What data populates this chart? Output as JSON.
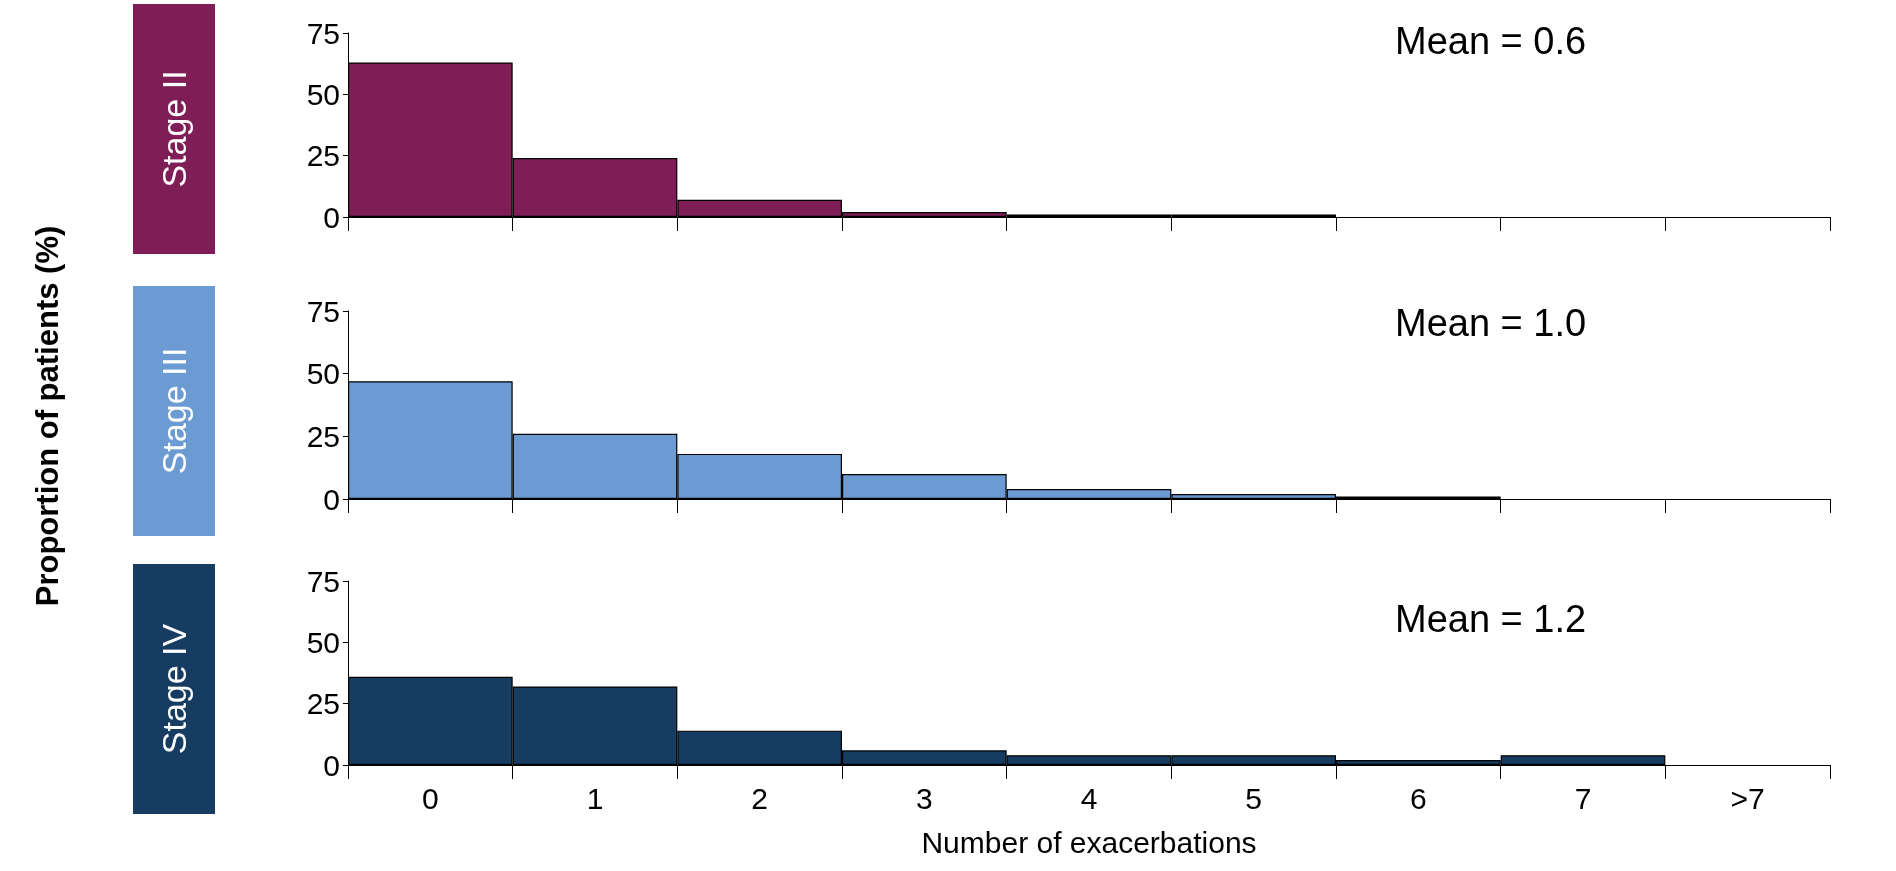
{
  "chart_data": [
    {
      "type": "bar",
      "title": "Stage II",
      "categories": [
        null,
        null,
        null,
        null,
        null,
        null,
        null,
        null,
        null
      ],
      "series": [
        {
          "color": "#7f1d56",
          "values": [
            63,
            24,
            7,
            2,
            1,
            1,
            0,
            0,
            0
          ]
        }
      ],
      "ylim": [
        0,
        75
      ],
      "yticks": [
        0,
        25,
        50,
        75
      ],
      "tick_labels": "y",
      "annotations": [
        "Mean = 0.6"
      ]
    },
    {
      "type": "bar",
      "title": "Stage III",
      "ylabel": "Proportion of patients (%)",
      "categories": [
        null,
        null,
        null,
        null,
        null,
        null,
        null,
        null,
        null
      ],
      "series": [
        {
          "color": "#6b9bd2",
          "values": [
            47,
            26,
            18,
            10,
            4,
            2,
            1,
            0,
            0
          ]
        }
      ],
      "ylim": [
        0,
        75
      ],
      "yticks": [
        0,
        25,
        50,
        75
      ],
      "tick_labels": "y",
      "annotations": [
        "Mean = 1.0"
      ]
    },
    {
      "type": "bar",
      "title": "Stage IV",
      "xlabel": "Number of exacerbations",
      "categories": [
        "0",
        "1",
        "2",
        "3",
        "4",
        "5",
        "6",
        "7",
        ">7"
      ],
      "series": [
        {
          "color": "#163c61",
          "values": [
            36,
            32,
            14,
            6,
            4,
            4,
            2,
            4,
            0
          ]
        }
      ],
      "ylim": [
        0,
        75
      ],
      "yticks": [
        0,
        25,
        50,
        75
      ],
      "annotations": [
        "Mean = 1.2"
      ]
    }
  ]
}
